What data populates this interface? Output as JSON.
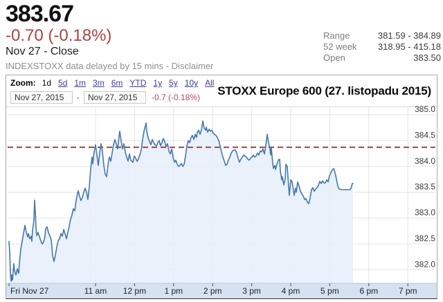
{
  "header": {
    "price": "383.67",
    "change": "-0.70 (-0.18%)",
    "date_close": "Nov 27 - Close",
    "delay_note": "INDEXSTOXX data delayed by 15 mins -",
    "disclaimer_link": "Disclaimer",
    "change_color": "#a9453f"
  },
  "stats": [
    {
      "label": "Range",
      "value": "381.59 - 384.89"
    },
    {
      "label": "52 week",
      "value": "318.95 - 415.18"
    },
    {
      "label": "Open",
      "value": "383.50"
    }
  ],
  "controls": {
    "zoom_label": "Zoom:",
    "ranges": [
      "1d",
      "5d",
      "1m",
      "3m",
      "6m",
      "YTD",
      "1y",
      "5y",
      "10y",
      "All"
    ],
    "selected_range": "1d",
    "date_from": "Nov 27, 2015",
    "date_to": "Nov 27, 2015",
    "separator": "-",
    "range_change": "-0.7 (-0.18%)",
    "link_color": "#3c3c9c",
    "range_change_color": "#b5476b"
  },
  "chart_data": {
    "type": "area",
    "title": "STOXX Europe 600 (27. listopadu 2015)",
    "ylabel": "",
    "xlabel": "",
    "y_ticks": [
      "385.0",
      "384.5",
      "384.0",
      "383.5",
      "383.0",
      "382.5",
      "382.0"
    ],
    "ylim": [
      381.7,
      385.15
    ],
    "x_ticks": [
      "11 am",
      "12 pm",
      "1 pm",
      "2 pm",
      "3 pm",
      "4 pm",
      "5 pm",
      "6 pm",
      "7 pm"
    ],
    "x_day_label": "Fri Nov 27",
    "prev_close": 384.37,
    "grid": true,
    "colors": {
      "line": "#4477aa",
      "fill": "#e6effa",
      "prev_close_dash": "#9a4742",
      "axis_band": "#d5e2f2",
      "gridline": "#dcdcdc"
    },
    "series": [
      {
        "name": "STOXX Europe 600",
        "points": [
          [
            0,
            382.55
          ],
          [
            1,
            382.35
          ],
          [
            2,
            381.98
          ],
          [
            3,
            381.78
          ],
          [
            4,
            381.9
          ],
          [
            5,
            381.8
          ],
          [
            6,
            381.97
          ],
          [
            7,
            382.12
          ],
          [
            8,
            381.98
          ],
          [
            10,
            381.9
          ],
          [
            12,
            382.02
          ],
          [
            14,
            381.93
          ],
          [
            15,
            382.12
          ],
          [
            17,
            382.4
          ],
          [
            19,
            382.55
          ],
          [
            20,
            382.63
          ],
          [
            22,
            382.78
          ],
          [
            23,
            382.86
          ],
          [
            25,
            382.72
          ],
          [
            27,
            382.64
          ],
          [
            28,
            382.7
          ],
          [
            30,
            382.6
          ],
          [
            32,
            382.65
          ],
          [
            33,
            382.55
          ],
          [
            34,
            382.76
          ],
          [
            36,
            382.95
          ],
          [
            37,
            383.35
          ],
          [
            38,
            383.12
          ],
          [
            39,
            382.83
          ],
          [
            40,
            382.66
          ],
          [
            42,
            382.72
          ],
          [
            44,
            382.64
          ],
          [
            46,
            382.56
          ],
          [
            48,
            382.5
          ],
          [
            50,
            382.54
          ],
          [
            52,
            382.64
          ],
          [
            53,
            382.8
          ],
          [
            55,
            382.83
          ],
          [
            57,
            382.72
          ],
          [
            59,
            382.66
          ],
          [
            61,
            382.58
          ],
          [
            63,
            382.28
          ],
          [
            65,
            382.16
          ],
          [
            67,
            382.28
          ],
          [
            69,
            382.44
          ],
          [
            71,
            382.56
          ],
          [
            73,
            382.6
          ],
          [
            75,
            382.7
          ],
          [
            77,
            382.65
          ],
          [
            79,
            382.78
          ],
          [
            81,
            382.7
          ],
          [
            83,
            382.6
          ],
          [
            85,
            382.72
          ],
          [
            87,
            382.84
          ],
          [
            89,
            382.98
          ],
          [
            91,
            383.06
          ],
          [
            93,
            383.18
          ],
          [
            95,
            383.14
          ],
          [
            97,
            383.34
          ],
          [
            99,
            383.48
          ],
          [
            100,
            383.53
          ],
          [
            102,
            383.42
          ],
          [
            104,
            383.34
          ],
          [
            106,
            383.4
          ],
          [
            108,
            383.5
          ],
          [
            110,
            383.58
          ],
          [
            112,
            383.5
          ],
          [
            114,
            383.36
          ],
          [
            116,
            383.6
          ],
          [
            118,
            383.95
          ],
          [
            120,
            384.18
          ],
          [
            121,
            384.05
          ],
          [
            123,
            384.28
          ],
          [
            125,
            384.42
          ],
          [
            127,
            384.22
          ],
          [
            129,
            384.02
          ],
          [
            131,
            384.26
          ],
          [
            133,
            384.44
          ],
          [
            135,
            384.28
          ],
          [
            137,
            384.02
          ],
          [
            139,
            383.85
          ],
          [
            141,
            383.8
          ],
          [
            143,
            384.02
          ],
          [
            145,
            384.18
          ],
          [
            147,
            384.1
          ],
          [
            149,
            384.26
          ],
          [
            151,
            384.42
          ],
          [
            153,
            384.52
          ],
          [
            155,
            384.44
          ],
          [
            157,
            384.34
          ],
          [
            159,
            384.58
          ],
          [
            160,
            384.68
          ],
          [
            162,
            384.5
          ],
          [
            164,
            384.34
          ],
          [
            166,
            384.44
          ],
          [
            168,
            384.28
          ],
          [
            170,
            384.18
          ],
          [
            172,
            384.1
          ],
          [
            174,
            384.24
          ],
          [
            176,
            384.12
          ],
          [
            179,
            384.08
          ],
          [
            181,
            384.2
          ],
          [
            183,
            384.16
          ],
          [
            185,
            384.1
          ],
          [
            187,
            384.14
          ],
          [
            189,
            384.22
          ],
          [
            191,
            384.32
          ],
          [
            193,
            384.52
          ],
          [
            195,
            384.68
          ],
          [
            197,
            384.78
          ],
          [
            198,
            384.84
          ],
          [
            199,
            384.68
          ],
          [
            201,
            384.56
          ],
          [
            203,
            384.48
          ],
          [
            205,
            384.42
          ],
          [
            207,
            384.52
          ],
          [
            209,
            384.46
          ],
          [
            211,
            384.42
          ],
          [
            213,
            384.4
          ],
          [
            215,
            384.46
          ],
          [
            217,
            384.5
          ],
          [
            219,
            384.4
          ],
          [
            221,
            384.46
          ],
          [
            223,
            384.54
          ],
          [
            225,
            384.48
          ],
          [
            227,
            384.38
          ],
          [
            229,
            384.44
          ],
          [
            231,
            384.3
          ],
          [
            233,
            384.24
          ],
          [
            235,
            384.34
          ],
          [
            237,
            384.18
          ],
          [
            239,
            384.08
          ],
          [
            241,
            384.12
          ],
          [
            243,
            384.04
          ],
          [
            245,
            384.0
          ],
          [
            247,
            384.02
          ],
          [
            249,
            384.06
          ],
          [
            251,
            384.0
          ],
          [
            253,
            384.04
          ],
          [
            255,
            384.2
          ],
          [
            257,
            384.4
          ],
          [
            259,
            384.5
          ],
          [
            261,
            384.46
          ],
          [
            263,
            384.56
          ],
          [
            265,
            384.6
          ],
          [
            267,
            384.52
          ],
          [
            269,
            384.62
          ],
          [
            271,
            384.56
          ],
          [
            272,
            384.66
          ],
          [
            274,
            384.7
          ],
          [
            276,
            384.62
          ],
          [
            278,
            384.7
          ],
          [
            280,
            384.88
          ],
          [
            282,
            384.74
          ],
          [
            284,
            384.7
          ],
          [
            285,
            384.76
          ],
          [
            287,
            384.66
          ],
          [
            289,
            384.72
          ],
          [
            291,
            384.68
          ],
          [
            293,
            384.7
          ],
          [
            295,
            384.64
          ],
          [
            297,
            384.62
          ],
          [
            299,
            384.6
          ],
          [
            301,
            384.56
          ],
          [
            303,
            384.5
          ],
          [
            305,
            384.4
          ],
          [
            307,
            384.28
          ],
          [
            309,
            384.18
          ],
          [
            311,
            384.1
          ],
          [
            313,
            384.02
          ],
          [
            315,
            384.04
          ],
          [
            317,
            384.12
          ],
          [
            319,
            384.18
          ],
          [
            321,
            384.26
          ],
          [
            323,
            384.3
          ],
          [
            325,
            384.32
          ],
          [
            327,
            384.32
          ],
          [
            329,
            384.26
          ],
          [
            331,
            384.16
          ],
          [
            333,
            384.08
          ],
          [
            335,
            384.14
          ],
          [
            337,
            384.18
          ],
          [
            339,
            384.22
          ],
          [
            341,
            384.2
          ],
          [
            343,
            384.18
          ],
          [
            345,
            384.14
          ],
          [
            347,
            384.12
          ],
          [
            349,
            384.16
          ],
          [
            351,
            384.18
          ],
          [
            353,
            384.22
          ],
          [
            355,
            384.18
          ],
          [
            357,
            384.2
          ],
          [
            359,
            384.26
          ],
          [
            361,
            384.22
          ],
          [
            363,
            384.3
          ],
          [
            365,
            384.28
          ],
          [
            367,
            384.34
          ],
          [
            369,
            384.24
          ],
          [
            371,
            384.4
          ],
          [
            373,
            384.62
          ],
          [
            375,
            384.46
          ],
          [
            377,
            384.34
          ],
          [
            378,
            384.22
          ],
          [
            379,
            384.36
          ],
          [
            381,
            384.06
          ],
          [
            382,
            383.96
          ],
          [
            384,
            384.02
          ],
          [
            385,
            383.94
          ],
          [
            387,
            384.04
          ],
          [
            389,
            384.12
          ],
          [
            391,
            384.14
          ],
          [
            392,
            383.92
          ],
          [
            394,
            383.74
          ],
          [
            395,
            383.8
          ],
          [
            397,
            383.64
          ],
          [
            399,
            383.76
          ],
          [
            400,
            384.04
          ],
          [
            402,
            384.0
          ],
          [
            404,
            383.6
          ],
          [
            405,
            383.44
          ],
          [
            407,
            383.74
          ],
          [
            409,
            383.7
          ],
          [
            411,
            383.54
          ],
          [
            412,
            383.44
          ],
          [
            414,
            383.58
          ],
          [
            415,
            383.5
          ],
          [
            417,
            383.7
          ],
          [
            419,
            383.62
          ],
          [
            421,
            383.52
          ],
          [
            423,
            383.47
          ],
          [
            425,
            383.43
          ],
          [
            427,
            383.36
          ],
          [
            429,
            383.38
          ],
          [
            431,
            383.31
          ],
          [
            433,
            383.28
          ],
          [
            435,
            383.39
          ],
          [
            437,
            383.55
          ],
          [
            439,
            383.59
          ],
          [
            441,
            383.52
          ],
          [
            443,
            383.56
          ],
          [
            445,
            383.59
          ],
          [
            447,
            383.63
          ],
          [
            449,
            383.71
          ],
          [
            451,
            383.67
          ],
          [
            453,
            383.72
          ],
          [
            455,
            383.68
          ],
          [
            457,
            383.68
          ],
          [
            459,
            383.74
          ],
          [
            461,
            383.7
          ],
          [
            463,
            383.82
          ],
          [
            465,
            383.88
          ],
          [
            467,
            383.93
          ],
          [
            469,
            383.96
          ],
          [
            471,
            383.88
          ],
          [
            473,
            383.76
          ],
          [
            475,
            383.62
          ],
          [
            477,
            383.56
          ],
          [
            481,
            383.55
          ],
          [
            485,
            383.55
          ],
          [
            489,
            383.55
          ],
          [
            492,
            383.55
          ],
          [
            494,
            383.57
          ],
          [
            496,
            383.67
          ],
          [
            497,
            383.67
          ]
        ]
      }
    ]
  }
}
